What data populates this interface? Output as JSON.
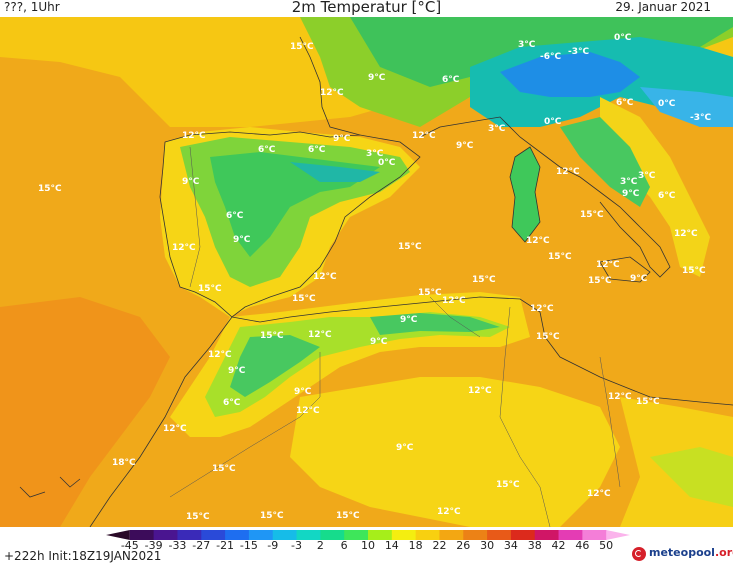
{
  "header": {
    "left": "???, 1Uhr",
    "title": "2m Temperatur [°C]",
    "date": "29. Januar 2021"
  },
  "footer": {
    "init": "+222h  Init:18Z19JAN2021",
    "logo_main": "meteopool",
    "logo_suffix": ".org"
  },
  "legend": {
    "ticks": [
      "-45",
      "-39",
      "-33",
      "-27",
      "-21",
      "-15",
      "-9",
      "-3",
      "2",
      "6",
      "10",
      "14",
      "18",
      "22",
      "26",
      "30",
      "34",
      "38",
      "42",
      "46",
      "50"
    ],
    "colors": [
      "#2a0a28",
      "#3c0c5a",
      "#4a1590",
      "#3a2ab8",
      "#2a4ad8",
      "#1e6ef0",
      "#1f96f5",
      "#16bce8",
      "#12d7c4",
      "#16dc8c",
      "#3ee65a",
      "#a6ee1a",
      "#f4ee10",
      "#f8d010",
      "#f3a712",
      "#ec8216",
      "#e85a18",
      "#dc2a1c",
      "#d01666",
      "#e43cb4",
      "#f47ed8",
      "#fbb4ec"
    ]
  },
  "map_labels": [
    "15°C",
    "12°C",
    "9°C",
    "6°C",
    "3°C",
    "0°C",
    "-3°C",
    "-6°C",
    "15°C",
    "12°C",
    "9°C",
    "6°C",
    "3°C",
    "0°C",
    "12°C",
    "9°C",
    "6°C",
    "3°C",
    "0°C",
    "15°C",
    "12°C",
    "9°C",
    "6°C",
    "15°C",
    "12°C",
    "15°C",
    "18°C",
    "12°C",
    "9°C",
    "6°C",
    "12°C",
    "15°C",
    "9°C",
    "12°C",
    "15°C",
    "12°C",
    "9°C",
    "15°C",
    "12°C",
    "9°C",
    "6°C",
    "0°C",
    "-3°C",
    "12°C",
    "15°C",
    "15°C",
    "12°C",
    "9°C",
    "15°C",
    "12°C",
    "15°C",
    "15°C",
    "12°C",
    "15°C",
    "9°C",
    "12°C",
    "15°C",
    "12°C",
    "9°C",
    "6°C",
    "3°C",
    "3°C",
    "12°C",
    "15°C",
    "15°C",
    "9°C",
    "15°C",
    "12°C",
    "15°C",
    "12°C"
  ]
}
